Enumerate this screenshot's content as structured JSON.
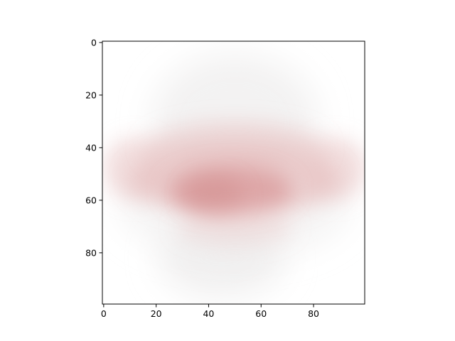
{
  "chart_data": {
    "type": "heatmap",
    "title": "",
    "xlabel": "",
    "ylabel": "",
    "image_size": [
      100,
      100
    ],
    "xlim": [
      -0.5,
      99.5
    ],
    "ylim": [
      99.5,
      -0.5
    ],
    "x_ticks": [
      0,
      20,
      40,
      60,
      80
    ],
    "y_ticks": [
      0,
      20,
      40,
      60,
      80
    ],
    "x_tick_labels": [
      "0",
      "20",
      "40",
      "60",
      "80"
    ],
    "y_tick_labels": [
      "0",
      "20",
      "40",
      "60",
      "80"
    ],
    "grid": false,
    "colors": {
      "background": "#ffffff",
      "faint_gray": "#ecebeb",
      "light_pink": "#e7c2c2",
      "rose": "#d99a9b",
      "deep_rose": "#d38f90"
    }
  }
}
